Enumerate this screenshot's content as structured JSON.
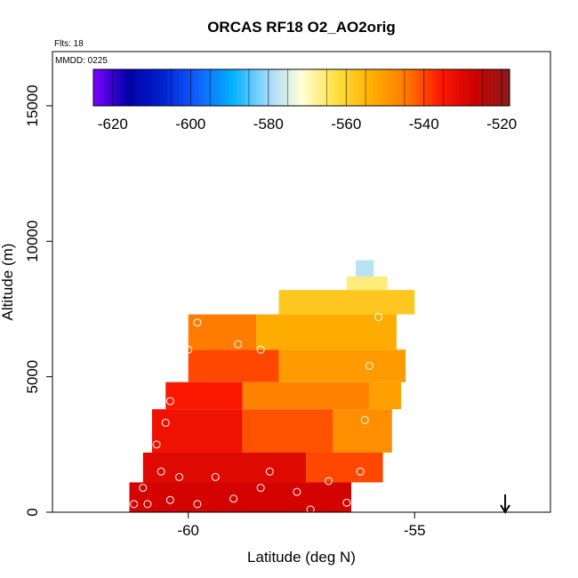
{
  "chart_data": {
    "type": "heatmap",
    "title": "ORCAS RF18 O2_AO2orig",
    "flights_note": "Flts: 18",
    "mmdd_note": "MMDD: 0225",
    "xlabel": "Latitude (deg N)",
    "ylabel": "Altitude (m)",
    "xlim": [
      -63,
      -52
    ],
    "ylim": [
      0,
      17000
    ],
    "x_ticks": [
      -60,
      -55
    ],
    "x_tick_labels": [
      "-60",
      "-55"
    ],
    "y_ticks": [
      0,
      5000,
      10000,
      15000
    ],
    "y_tick_labels": [
      "0",
      "5000",
      "10000",
      "15000"
    ],
    "grid": false,
    "legend": "colorbar-top",
    "colorbar": {
      "min": -625,
      "max": -518,
      "ticks": [
        -620,
        -600,
        -580,
        -560,
        -540,
        -520
      ],
      "tick_labels": [
        "-620",
        "-600",
        "-580",
        "-560",
        "-540",
        "-520"
      ],
      "colors": [
        "#7f00ff",
        "#0000aa",
        "#0022d0",
        "#1060ff",
        "#00b0ff",
        "#9ed8ff",
        "#ffffd8",
        "#ffe040",
        "#ffb000",
        "#ff7a00",
        "#ff1a00",
        "#cc0000",
        "#8b1a1a"
      ]
    },
    "cells": [
      {
        "lat_min": -61.3,
        "lat_max": -57.4,
        "alt_min": 0,
        "alt_max": 1100,
        "value": -523
      },
      {
        "lat_min": -61.3,
        "lat_max": -56.4,
        "alt_min": 0,
        "alt_max": 1100,
        "value": -528
      },
      {
        "lat_min": -61.0,
        "lat_max": -57.4,
        "alt_min": 1100,
        "alt_max": 2200,
        "value": -530
      },
      {
        "lat_min": -57.4,
        "lat_max": -55.7,
        "alt_min": 1100,
        "alt_max": 2200,
        "value": -540
      },
      {
        "lat_min": -60.8,
        "lat_max": -58.8,
        "alt_min": 2200,
        "alt_max": 3800,
        "value": -533
      },
      {
        "lat_min": -58.8,
        "lat_max": -56.8,
        "alt_min": 2200,
        "alt_max": 3800,
        "value": -541
      },
      {
        "lat_min": -56.8,
        "lat_max": -55.5,
        "alt_min": 2200,
        "alt_max": 3800,
        "value": -548
      },
      {
        "lat_min": -60.5,
        "lat_max": -58.8,
        "alt_min": 3800,
        "alt_max": 4800,
        "value": -535
      },
      {
        "lat_min": -58.8,
        "lat_max": -56.0,
        "alt_min": 3800,
        "alt_max": 4800,
        "value": -546
      },
      {
        "lat_min": -56.0,
        "lat_max": -55.3,
        "alt_min": 3800,
        "alt_max": 4800,
        "value": -551
      },
      {
        "lat_min": -60.0,
        "lat_max": -58.0,
        "alt_min": 4800,
        "alt_max": 6000,
        "value": -540
      },
      {
        "lat_min": -58.0,
        "lat_max": -55.2,
        "alt_min": 4800,
        "alt_max": 6000,
        "value": -550
      },
      {
        "lat_min": -60.0,
        "lat_max": -58.5,
        "alt_min": 6000,
        "alt_max": 7300,
        "value": -545
      },
      {
        "lat_min": -58.5,
        "lat_max": -55.4,
        "alt_min": 6000,
        "alt_max": 7300,
        "value": -553
      },
      {
        "lat_min": -58.0,
        "lat_max": -55.0,
        "alt_min": 7300,
        "alt_max": 8200,
        "value": -558
      },
      {
        "lat_min": -56.5,
        "lat_max": -55.6,
        "alt_min": 8200,
        "alt_max": 8700,
        "value": -566
      },
      {
        "lat_min": -56.3,
        "lat_max": -55.9,
        "alt_min": 8700,
        "alt_max": 9300,
        "value": -578
      }
    ],
    "points": [
      {
        "lat": -61.2,
        "alt": 300
      },
      {
        "lat": -60.9,
        "alt": 300
      },
      {
        "lat": -60.4,
        "alt": 450
      },
      {
        "lat": -59.8,
        "alt": 300
      },
      {
        "lat": -59.0,
        "alt": 500
      },
      {
        "lat": -58.4,
        "alt": 900
      },
      {
        "lat": -57.6,
        "alt": 750
      },
      {
        "lat": -57.3,
        "alt": 100
      },
      {
        "lat": -56.9,
        "alt": 1150
      },
      {
        "lat": -56.5,
        "alt": 350
      },
      {
        "lat": -56.3,
        "alt": 100
      },
      {
        "lat": -61.0,
        "alt": 900
      },
      {
        "lat": -60.6,
        "alt": 1500
      },
      {
        "lat": -60.2,
        "alt": 1300
      },
      {
        "lat": -59.4,
        "alt": 1300
      },
      {
        "lat": -58.2,
        "alt": 1500
      },
      {
        "lat": -56.2,
        "alt": 1500
      },
      {
        "lat": -60.7,
        "alt": 2500
      },
      {
        "lat": -60.5,
        "alt": 3300
      },
      {
        "lat": -60.4,
        "alt": 4100
      },
      {
        "lat": -60.2,
        "alt": 5100
      },
      {
        "lat": -60.0,
        "alt": 6000
      },
      {
        "lat": -59.8,
        "alt": 7000
      },
      {
        "lat": -58.9,
        "alt": 6200
      },
      {
        "lat": -58.4,
        "alt": 6000
      },
      {
        "lat": -56.0,
        "alt": 5400
      },
      {
        "lat": -56.1,
        "alt": 3400
      },
      {
        "lat": -55.8,
        "alt": 7200
      },
      {
        "lat": -55.0,
        "alt": 7100
      },
      {
        "lat": -54.8,
        "alt": 7100
      }
    ],
    "arrow_lat": -53.0
  }
}
